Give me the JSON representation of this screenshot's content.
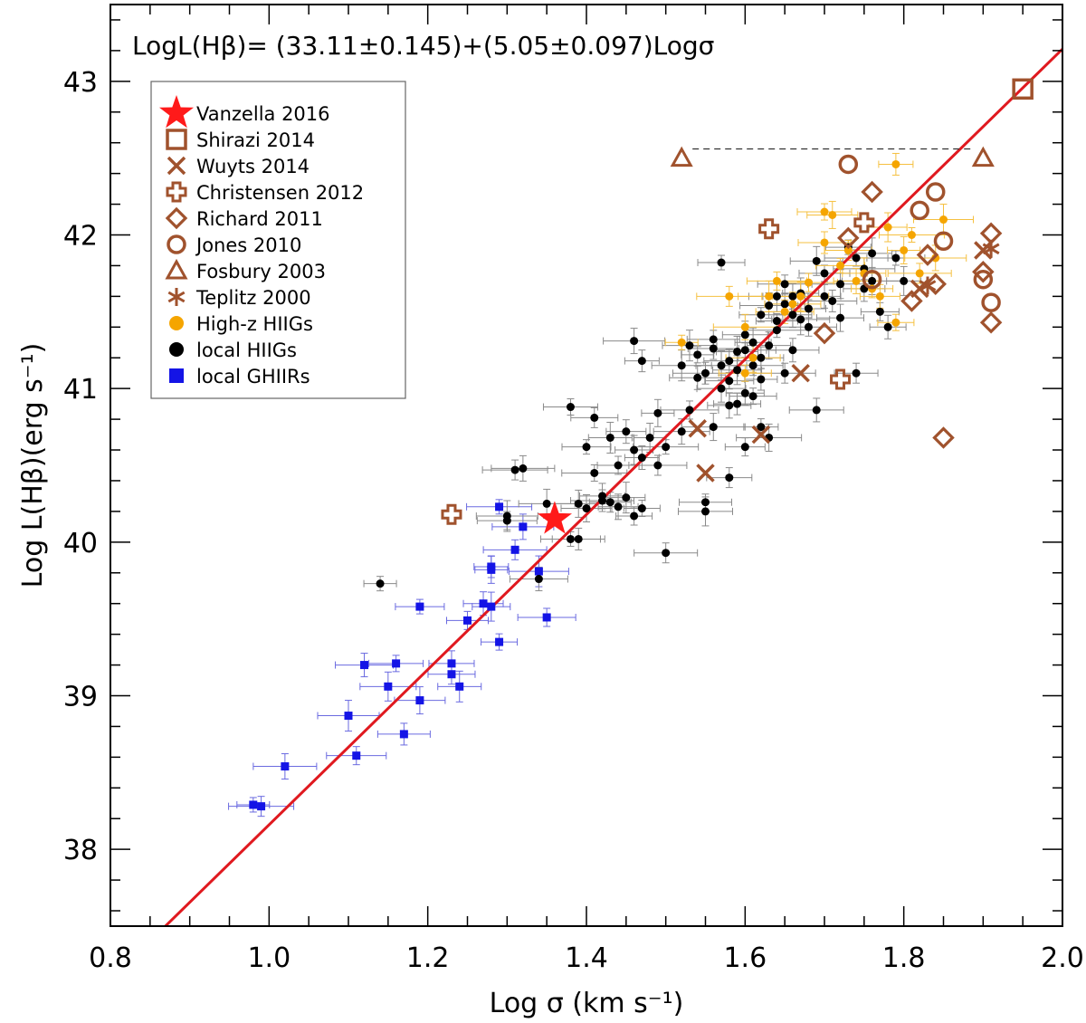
{
  "chart_data": {
    "type": "scatter",
    "title": "",
    "fit_label": "LogL(Hβ)= (33.11±0.145)+(5.05±0.097)Logσ",
    "fit_line": {
      "intercept": 33.11,
      "slope": 5.05,
      "color": "#e0191f"
    },
    "xlabel": "Log σ (km s⁻¹)",
    "ylabel": "Log L(Hβ)(erg s⁻¹)",
    "xlim": [
      0.8,
      2.0
    ],
    "ylim": [
      37.5,
      43.5
    ],
    "xticks": [
      "0.8",
      "1.0",
      "1.2",
      "1.4",
      "1.6",
      "1.8",
      "2.0"
    ],
    "yticks": [
      "38",
      "39",
      "40",
      "41",
      "42",
      "43"
    ],
    "colors": {
      "brown": "#a0522d",
      "orange": "#f5a500",
      "black": "#000000",
      "blue": "#1414e6",
      "red": "#ff1a1a"
    },
    "legend": [
      {
        "label": "Vanzella 2016",
        "symbol": "star",
        "color": "#ff1a1a"
      },
      {
        "label": "Shirazi 2014",
        "symbol": "square-open",
        "color": "#a0522d"
      },
      {
        "label": "Wuyts 2014",
        "symbol": "x",
        "color": "#a0522d"
      },
      {
        "label": "Christensen 2012",
        "symbol": "plus-open",
        "color": "#a0522d"
      },
      {
        "label": "Richard 2011",
        "symbol": "diamond-open",
        "color": "#a0522d"
      },
      {
        "label": "Jones 2010",
        "symbol": "circle-open",
        "color": "#a0522d"
      },
      {
        "label": "Fosbury 2003",
        "symbol": "triangle-open",
        "color": "#a0522d"
      },
      {
        "label": "Teplitz  2000",
        "symbol": "asterisk",
        "color": "#a0522d"
      },
      {
        "label": "High-z HIIGs",
        "symbol": "circle-filled",
        "color": "#f5a500"
      },
      {
        "label": "local HIIGs",
        "symbol": "circle-filled",
        "color": "#000000"
      },
      {
        "label": "local GHIIRs",
        "symbol": "square-filled",
        "color": "#1414e6"
      }
    ],
    "series": [
      {
        "name": "Vanzella 2016",
        "points": [
          [
            1.36,
            40.15
          ]
        ]
      },
      {
        "name": "Shirazi 2014",
        "points": [
          [
            1.95,
            42.95
          ]
        ]
      },
      {
        "name": "Wuyts 2014",
        "points": [
          [
            1.54,
            40.74
          ],
          [
            1.55,
            40.45
          ],
          [
            1.62,
            40.7
          ],
          [
            1.67,
            41.1
          ],
          [
            1.82,
            41.65
          ],
          [
            1.9,
            41.9
          ]
        ]
      },
      {
        "name": "Christensen 2012",
        "points": [
          [
            1.23,
            40.18
          ],
          [
            1.63,
            42.04
          ],
          [
            1.72,
            41.06
          ],
          [
            1.75,
            42.08
          ]
        ]
      },
      {
        "name": "Richard 2011",
        "points": [
          [
            1.7,
            41.36
          ],
          [
            1.73,
            41.98
          ],
          [
            1.76,
            42.28
          ],
          [
            1.81,
            41.57
          ],
          [
            1.83,
            41.87
          ],
          [
            1.84,
            41.68
          ],
          [
            1.85,
            40.68
          ],
          [
            1.9,
            41.76
          ],
          [
            1.91,
            41.43
          ],
          [
            1.91,
            42.01
          ]
        ]
      },
      {
        "name": "Jones 2010",
        "points": [
          [
            1.73,
            42.46
          ],
          [
            1.76,
            41.71
          ],
          [
            1.82,
            42.16
          ],
          [
            1.84,
            42.28
          ],
          [
            1.85,
            41.96
          ],
          [
            1.9,
            41.71
          ],
          [
            1.91,
            41.56
          ]
        ]
      },
      {
        "name": "Fosbury 2003",
        "points": [
          [
            1.52,
            42.5
          ],
          [
            1.9,
            42.5
          ]
        ],
        "dashed_link_y": 42.56
      },
      {
        "name": "Teplitz  2000",
        "points": [
          [
            1.83,
            41.67
          ],
          [
            1.91,
            41.91
          ]
        ]
      },
      {
        "name": "High-z HIIGs",
        "points": [
          [
            1.52,
            41.3
          ],
          [
            1.58,
            41.6
          ],
          [
            1.6,
            41.4
          ],
          [
            1.63,
            41.6
          ],
          [
            1.64,
            41.7
          ],
          [
            1.65,
            41.5
          ],
          [
            1.67,
            41.6
          ],
          [
            1.7,
            42.15
          ],
          [
            1.7,
            41.95
          ],
          [
            1.71,
            42.13
          ],
          [
            1.72,
            41.8
          ],
          [
            1.73,
            41.9
          ],
          [
            1.74,
            41.7
          ],
          [
            1.75,
            41.75
          ],
          [
            1.76,
            41.65
          ],
          [
            1.77,
            41.6
          ],
          [
            1.78,
            42.05
          ],
          [
            1.79,
            41.43
          ],
          [
            1.79,
            42.46
          ],
          [
            1.8,
            41.9
          ],
          [
            1.81,
            42.0
          ],
          [
            1.82,
            41.75
          ],
          [
            1.84,
            41.85
          ],
          [
            1.85,
            42.1
          ],
          [
            1.68,
            41.69
          ],
          [
            1.66,
            41.55
          ],
          [
            1.61,
            41.2
          ],
          [
            1.6,
            41.1
          ]
        ]
      },
      {
        "name": "local HIIGs",
        "points": [
          [
            1.14,
            39.73
          ],
          [
            1.31,
            40.47
          ],
          [
            1.32,
            40.48
          ],
          [
            1.3,
            40.17
          ],
          [
            1.3,
            40.14
          ],
          [
            1.34,
            39.76
          ],
          [
            1.35,
            40.25
          ],
          [
            1.38,
            40.88
          ],
          [
            1.39,
            40.02
          ],
          [
            1.4,
            40.22
          ],
          [
            1.4,
            40.62
          ],
          [
            1.41,
            40.81
          ],
          [
            1.42,
            40.3
          ],
          [
            1.43,
            40.68
          ],
          [
            1.44,
            40.5
          ],
          [
            1.45,
            40.72
          ],
          [
            1.46,
            40.6
          ],
          [
            1.47,
            40.22
          ],
          [
            1.47,
            41.18
          ],
          [
            1.49,
            40.84
          ],
          [
            1.5,
            40.62
          ],
          [
            1.5,
            39.93
          ],
          [
            1.46,
            41.31
          ],
          [
            1.52,
            41.15
          ],
          [
            1.53,
            40.86
          ],
          [
            1.54,
            41.07
          ],
          [
            1.55,
            40.2
          ],
          [
            1.55,
            40.26
          ],
          [
            1.56,
            41.26
          ],
          [
            1.57,
            41.0
          ],
          [
            1.57,
            41.82
          ],
          [
            1.58,
            40.42
          ],
          [
            1.58,
            40.89
          ],
          [
            1.59,
            41.24
          ],
          [
            1.6,
            40.62
          ],
          [
            1.6,
            40.97
          ],
          [
            1.61,
            41.3
          ],
          [
            1.62,
            40.75
          ],
          [
            1.62,
            41.06
          ],
          [
            1.63,
            40.68
          ],
          [
            1.64,
            41.38
          ],
          [
            1.65,
            41.1
          ],
          [
            1.66,
            41.6
          ],
          [
            1.67,
            41.45
          ],
          [
            1.68,
            41.4
          ],
          [
            1.69,
            40.86
          ],
          [
            1.69,
            41.83
          ],
          [
            1.7,
            41.75
          ],
          [
            1.71,
            41.57
          ],
          [
            1.72,
            41.46
          ],
          [
            1.73,
            41.92
          ],
          [
            1.74,
            41.1
          ],
          [
            1.75,
            41.65
          ],
          [
            1.76,
            41.88
          ],
          [
            1.77,
            41.5
          ],
          [
            1.78,
            41.4
          ],
          [
            1.8,
            41.7
          ],
          [
            1.54,
            41.22
          ],
          [
            1.55,
            41.1
          ],
          [
            1.56,
            40.75
          ],
          [
            1.6,
            41.25
          ],
          [
            1.61,
            41.15
          ],
          [
            1.63,
            41.54
          ],
          [
            1.64,
            41.6
          ],
          [
            1.65,
            41.68
          ],
          [
            1.66,
            41.25
          ],
          [
            1.57,
            41.15
          ],
          [
            1.58,
            41.05
          ],
          [
            1.59,
            40.9
          ],
          [
            1.6,
            41.35
          ],
          [
            1.62,
            41.48
          ],
          [
            1.43,
            40.26
          ],
          [
            1.44,
            40.23
          ],
          [
            1.45,
            40.29
          ],
          [
            1.46,
            40.17
          ],
          [
            1.47,
            40.55
          ],
          [
            1.48,
            40.68
          ],
          [
            1.41,
            40.45
          ],
          [
            1.42,
            40.27
          ],
          [
            1.39,
            40.25
          ],
          [
            1.38,
            40.02
          ],
          [
            1.49,
            40.5
          ],
          [
            1.52,
            40.72
          ],
          [
            1.53,
            41.28
          ],
          [
            1.56,
            41.32
          ],
          [
            1.58,
            41.18
          ],
          [
            1.59,
            41.12
          ],
          [
            1.61,
            40.95
          ],
          [
            1.62,
            41.2
          ],
          [
            1.63,
            41.28
          ],
          [
            1.64,
            41.44
          ],
          [
            1.65,
            41.55
          ],
          [
            1.66,
            41.48
          ],
          [
            1.67,
            41.62
          ],
          [
            1.68,
            41.52
          ],
          [
            1.7,
            41.6
          ],
          [
            1.72,
            41.68
          ],
          [
            1.74,
            41.85
          ],
          [
            1.75,
            41.78
          ],
          [
            1.76,
            41.7
          ],
          [
            1.79,
            41.85
          ]
        ]
      },
      {
        "name": "local GHIIRs",
        "points": [
          [
            0.98,
            38.29
          ],
          [
            0.99,
            38.28
          ],
          [
            1.02,
            38.54
          ],
          [
            1.1,
            38.87
          ],
          [
            1.11,
            38.61
          ],
          [
            1.12,
            39.2
          ],
          [
            1.15,
            39.06
          ],
          [
            1.16,
            39.21
          ],
          [
            1.17,
            38.75
          ],
          [
            1.19,
            38.97
          ],
          [
            1.19,
            39.58
          ],
          [
            1.23,
            39.14
          ],
          [
            1.23,
            39.21
          ],
          [
            1.24,
            39.06
          ],
          [
            1.25,
            39.49
          ],
          [
            1.27,
            39.6
          ],
          [
            1.28,
            39.58
          ],
          [
            1.29,
            39.35
          ],
          [
            1.28,
            39.84
          ],
          [
            1.28,
            39.82
          ],
          [
            1.29,
            40.23
          ],
          [
            1.31,
            39.95
          ],
          [
            1.32,
            40.1
          ],
          [
            1.34,
            39.81
          ],
          [
            1.35,
            39.51
          ]
        ]
      }
    ]
  }
}
